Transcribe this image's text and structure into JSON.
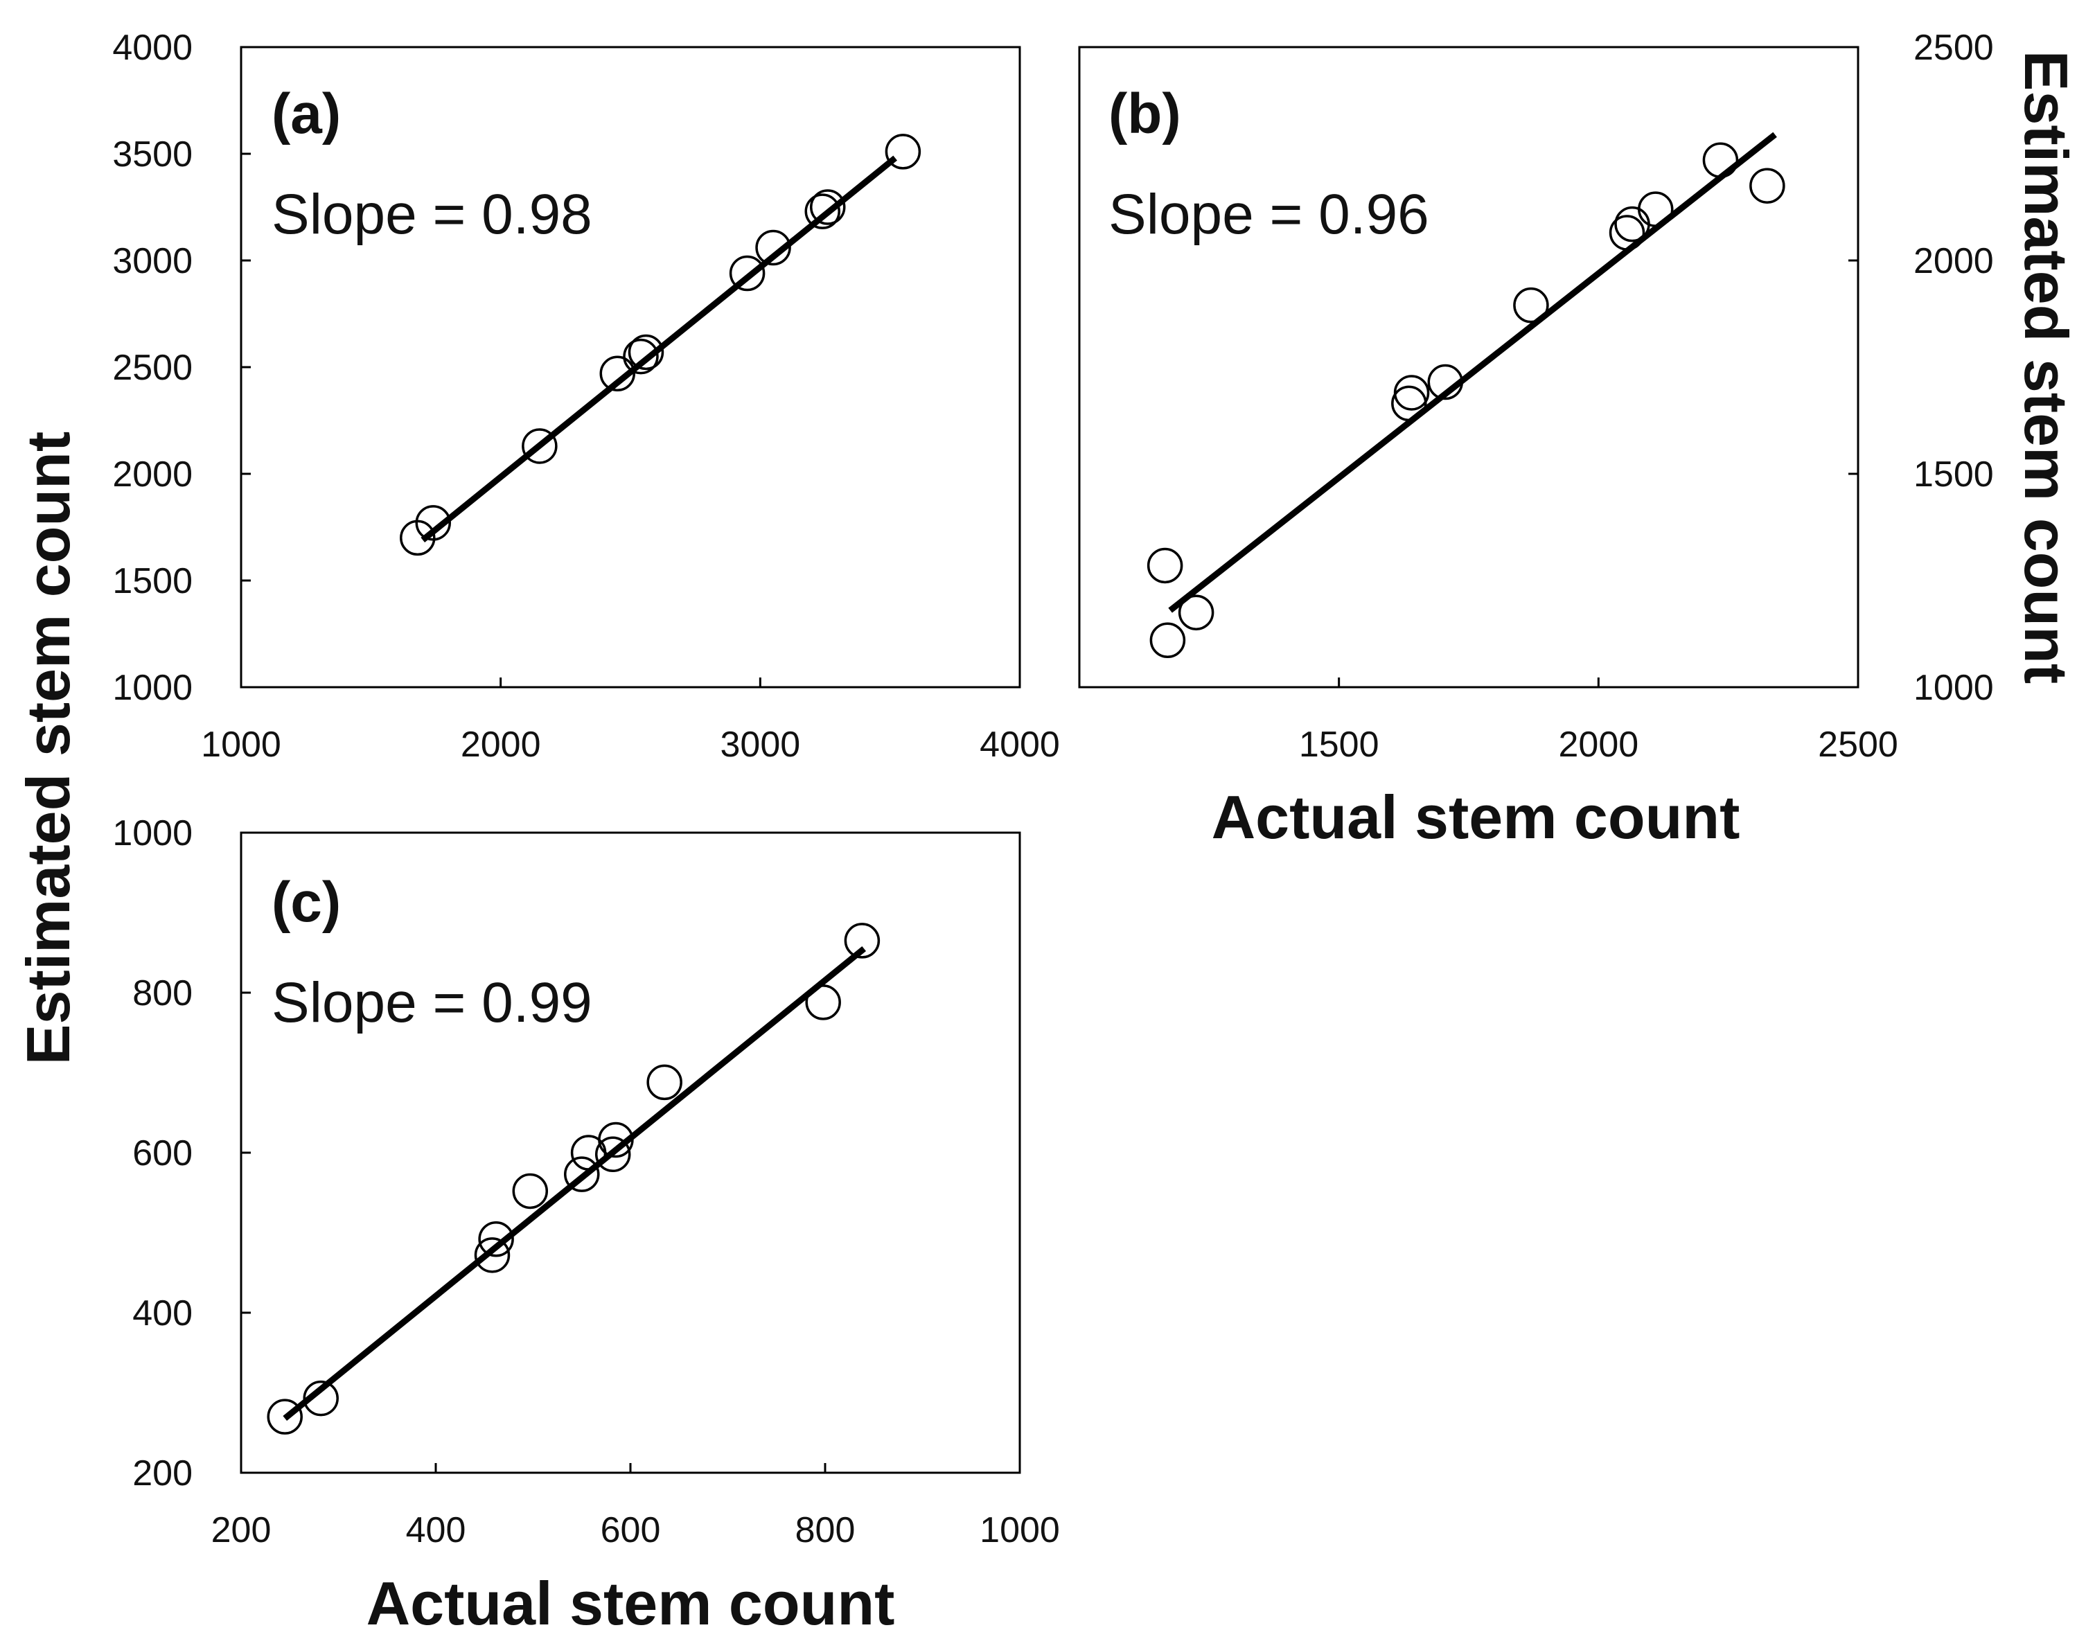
{
  "chart_data": [
    {
      "id": "a",
      "type": "scatter",
      "panel_label": "(a)",
      "annotation": "Slope = 0.98",
      "xlim": [
        1000,
        4000
      ],
      "ylim": [
        1000,
        4000
      ],
      "xticks": [
        1000,
        2000,
        3000,
        4000
      ],
      "yticks": [
        1000,
        1500,
        2000,
        2500,
        3000,
        3500,
        4000
      ],
      "xlabel": "",
      "ylabel": "",
      "y_axis_side": "left",
      "points": [
        {
          "x": 1680,
          "y": 1700
        },
        {
          "x": 1740,
          "y": 1770
        },
        {
          "x": 2150,
          "y": 2130
        },
        {
          "x": 2450,
          "y": 2470
        },
        {
          "x": 2540,
          "y": 2550
        },
        {
          "x": 2560,
          "y": 2570
        },
        {
          "x": 2950,
          "y": 2940
        },
        {
          "x": 3050,
          "y": 3060
        },
        {
          "x": 3240,
          "y": 3230
        },
        {
          "x": 3260,
          "y": 3250
        },
        {
          "x": 3550,
          "y": 3510
        }
      ],
      "fit_line": {
        "x": [
          1700,
          3520
        ],
        "y": [
          1690,
          3480
        ]
      }
    },
    {
      "id": "b",
      "type": "scatter",
      "panel_label": "(b)",
      "annotation": "Slope = 0.96",
      "xlim": [
        1000,
        2500
      ],
      "ylim": [
        1000,
        2500
      ],
      "xticks": [
        1500,
        2000,
        2500
      ],
      "yticks": [
        1000,
        1500,
        2000,
        2500
      ],
      "xlabel": "Actual stem count",
      "ylabel": "Estimated stem count",
      "y_axis_side": "right",
      "points": [
        {
          "x": 1165,
          "y": 1285
        },
        {
          "x": 1170,
          "y": 1110
        },
        {
          "x": 1225,
          "y": 1175
        },
        {
          "x": 1635,
          "y": 1665
        },
        {
          "x": 1640,
          "y": 1690
        },
        {
          "x": 1705,
          "y": 1715
        },
        {
          "x": 1870,
          "y": 1895
        },
        {
          "x": 2055,
          "y": 2065
        },
        {
          "x": 2065,
          "y": 2085
        },
        {
          "x": 2110,
          "y": 2120
        },
        {
          "x": 2235,
          "y": 2235
        },
        {
          "x": 2325,
          "y": 2175
        }
      ],
      "fit_line": {
        "x": [
          1175,
          2340
        ],
        "y": [
          1180,
          2295
        ]
      }
    },
    {
      "id": "c",
      "type": "scatter",
      "panel_label": "(c)",
      "annotation": "Slope = 0.99",
      "xlim": [
        200,
        1000
      ],
      "ylim": [
        200,
        1000
      ],
      "xticks": [
        200,
        400,
        600,
        800,
        1000
      ],
      "yticks": [
        200,
        400,
        600,
        800,
        1000
      ],
      "xlabel": "Actual stem count",
      "ylabel": "",
      "y_axis_side": "left",
      "points": [
        {
          "x": 245,
          "y": 270
        },
        {
          "x": 282,
          "y": 293
        },
        {
          "x": 458,
          "y": 472
        },
        {
          "x": 462,
          "y": 492
        },
        {
          "x": 497,
          "y": 552
        },
        {
          "x": 550,
          "y": 573
        },
        {
          "x": 557,
          "y": 600
        },
        {
          "x": 582,
          "y": 598
        },
        {
          "x": 585,
          "y": 616
        },
        {
          "x": 635,
          "y": 688
        },
        {
          "x": 798,
          "y": 788
        },
        {
          "x": 838,
          "y": 865
        }
      ],
      "fit_line": {
        "x": [
          245,
          840
        ],
        "y": [
          268,
          855
        ]
      }
    }
  ],
  "shared_ylabel": "Estimated stem count"
}
